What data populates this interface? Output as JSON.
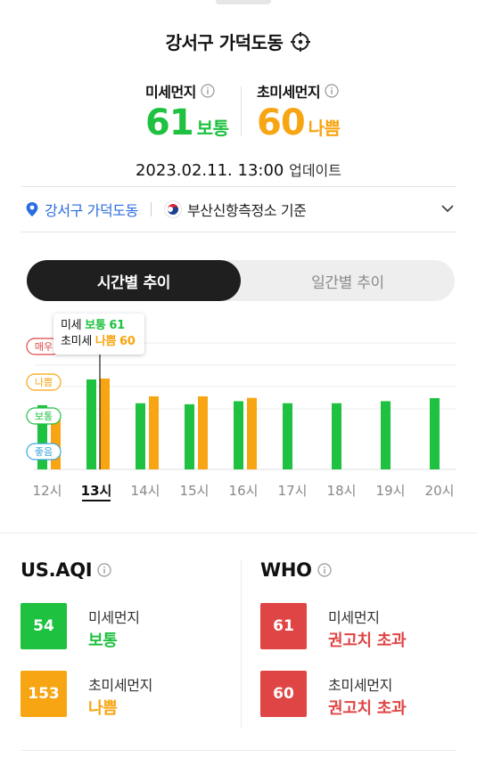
{
  "header": {
    "location_title": "강서구 가덕도동"
  },
  "current": {
    "pm10": {
      "label": "미세먼지",
      "value": "61",
      "grade": "보통",
      "color": "#1ec140"
    },
    "pm25": {
      "label": "초미세먼지",
      "value": "60",
      "grade": "나쁨",
      "color": "#f7a512"
    },
    "updated_time": "2023.02.11. 13:00",
    "updated_suffix": "업데이트"
  },
  "location_bar": {
    "location": "강서구 가덕도동",
    "station": "부산신항측정소 기준"
  },
  "tabs": [
    {
      "label": "시간별 추이",
      "active": true
    },
    {
      "label": "일간별 추이",
      "active": false
    }
  ],
  "chart_data": {
    "type": "bar",
    "categories": [
      "12시",
      "13시",
      "14시",
      "15시",
      "16시",
      "17시",
      "18시",
      "19시",
      "20시"
    ],
    "selected_category": "13시",
    "grade_levels": [
      "좋음",
      "보통",
      "나쁨",
      "매우"
    ],
    "series": [
      {
        "name": "미세",
        "color": "#1ec140",
        "values": [
          38,
          61,
          40,
          39,
          42,
          40,
          40,
          42,
          45
        ]
      },
      {
        "name": "초미세",
        "color": "#f7a512",
        "values": [
          36,
          60,
          48,
          48,
          47,
          null,
          null,
          null,
          null
        ]
      }
    ],
    "colors": {
      "good": "#3aa5de",
      "normal": "#1ec140",
      "bad": "#f7a512",
      "very_bad": "#e04545"
    }
  },
  "tooltip": {
    "row1_label": "미세",
    "row1_grade": "보통",
    "row1_value": "61",
    "row2_label": "초미세",
    "row2_grade": "나쁨",
    "row2_value": "60"
  },
  "standards": {
    "us_aqi": {
      "title": "US.AQI",
      "items": [
        {
          "value": "54",
          "name": "미세먼지",
          "grade": "보통",
          "color": "#1ec140"
        },
        {
          "value": "153",
          "name": "초미세먼지",
          "grade": "나쁨",
          "color": "#f7a512"
        }
      ]
    },
    "who": {
      "title": "WHO",
      "items": [
        {
          "value": "61",
          "name": "미세먼지",
          "grade": "권고치 초과",
          "color": "#e04545"
        },
        {
          "value": "60",
          "name": "초미세먼지",
          "grade": "권고치 초과",
          "color": "#e04545"
        }
      ]
    }
  }
}
